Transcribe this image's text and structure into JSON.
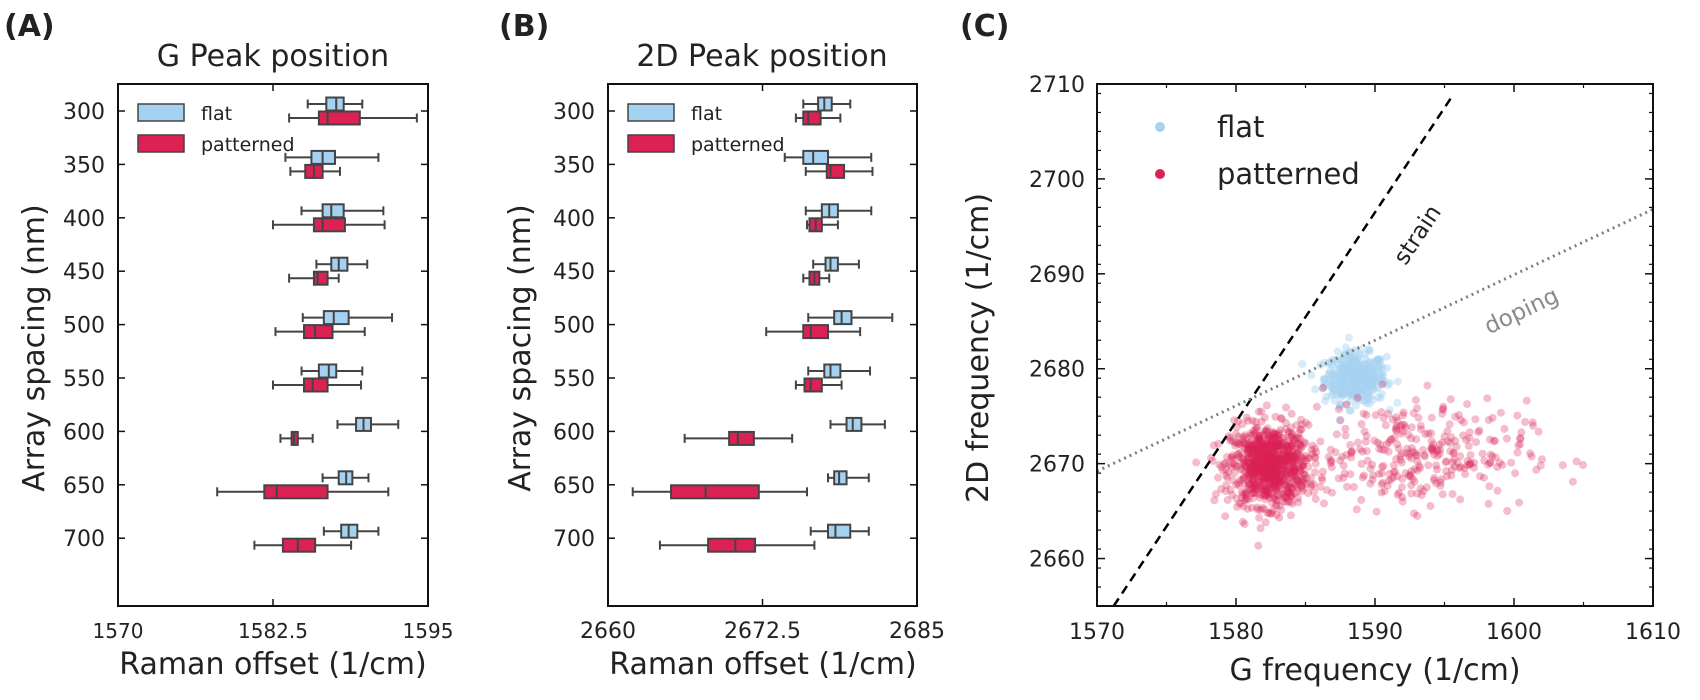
{
  "colors": {
    "flat": "#a6d2f2",
    "patterned": "#dc2255",
    "line": "#222222",
    "box_edge": "#444444",
    "strain": "#000000",
    "doping": "#7f7f7f"
  },
  "chart_data": [
    {
      "type": "box",
      "panel": "(A)",
      "title": "G Peak position",
      "xlabel": "Raman offset (1/cm)",
      "ylabel": "Array spacing (nm)",
      "xlim": [
        1570,
        1595
      ],
      "xticks": [
        "1570",
        "1582.5",
        "1595"
      ],
      "categories": [
        "300",
        "350",
        "400",
        "450",
        "500",
        "550",
        "600",
        "650",
        "700"
      ],
      "legend": [
        "flat",
        "patterned"
      ],
      "legend_position": "top-left",
      "series": [
        {
          "name": "flat",
          "whisker_low": [
            1585.3,
            1583.5,
            1584.8,
            1586.0,
            1584.9,
            1584.8,
            1587.7,
            1586.5,
            1586.6
          ],
          "q1": [
            1586.8,
            1585.6,
            1586.5,
            1587.2,
            1586.6,
            1586.2,
            1589.2,
            1587.8,
            1588.0
          ],
          "median": [
            1587.6,
            1586.5,
            1587.2,
            1587.8,
            1587.4,
            1587.0,
            1589.8,
            1588.4,
            1588.6
          ],
          "q3": [
            1588.2,
            1587.5,
            1588.2,
            1588.5,
            1588.6,
            1587.6,
            1590.4,
            1588.9,
            1589.3
          ],
          "whisker_high": [
            1589.7,
            1591.0,
            1591.4,
            1590.1,
            1592.1,
            1589.7,
            1592.6,
            1590.2,
            1591.0
          ]
        },
        {
          "name": "patterned",
          "whisker_low": [
            1583.8,
            1583.9,
            1582.5,
            1583.8,
            1582.7,
            1582.5,
            1583.1,
            1578.0,
            1581.0
          ],
          "q1": [
            1586.2,
            1585.1,
            1585.8,
            1585.8,
            1585.0,
            1585.0,
            1584.0,
            1581.8,
            1583.3
          ],
          "median": [
            1586.9,
            1585.8,
            1586.5,
            1586.1,
            1585.9,
            1585.7,
            1584.2,
            1582.8,
            1584.5
          ],
          "q3": [
            1589.5,
            1586.5,
            1588.3,
            1586.9,
            1587.3,
            1586.9,
            1584.5,
            1586.9,
            1585.9
          ],
          "whisker_high": [
            1594.1,
            1587.9,
            1591.5,
            1587.8,
            1589.9,
            1589.6,
            1585.7,
            1591.8,
            1588.8
          ]
        }
      ]
    },
    {
      "type": "box",
      "panel": "(B)",
      "title": "2D Peak position",
      "xlabel": "Raman offset (1/cm)",
      "ylabel": "Array spacing (nm)",
      "xlim": [
        2660,
        2685
      ],
      "xticks": [
        "2660",
        "2672.5",
        "2685"
      ],
      "categories": [
        "300",
        "350",
        "400",
        "450",
        "500",
        "550",
        "600",
        "650",
        "700"
      ],
      "legend": [
        "flat",
        "patterned"
      ],
      "legend_position": "top-left",
      "series": [
        {
          "name": "flat",
          "whisker_low": [
            2675.8,
            2674.3,
            2676.0,
            2676.6,
            2676.2,
            2676.2,
            2678.0,
            2677.8,
            2676.4
          ],
          "q1": [
            2677.0,
            2675.8,
            2677.3,
            2677.6,
            2678.3,
            2677.5,
            2679.3,
            2678.3,
            2677.8
          ],
          "median": [
            2677.5,
            2676.6,
            2677.9,
            2678.0,
            2678.9,
            2678.0,
            2679.8,
            2678.7,
            2678.4
          ],
          "q3": [
            2678.1,
            2677.8,
            2678.6,
            2678.6,
            2679.7,
            2678.8,
            2680.5,
            2679.3,
            2679.6
          ],
          "whisker_high": [
            2679.6,
            2681.3,
            2681.3,
            2680.3,
            2683.0,
            2681.2,
            2682.4,
            2681.1,
            2681.1
          ]
        },
        {
          "name": "patterned",
          "whisker_low": [
            2675.2,
            2676.0,
            2676.1,
            2675.8,
            2672.8,
            2675.2,
            2666.2,
            2662.0,
            2664.2
          ],
          "q1": [
            2675.8,
            2677.7,
            2676.3,
            2676.3,
            2675.8,
            2675.9,
            2669.8,
            2665.1,
            2668.1
          ],
          "median": [
            2676.2,
            2678.0,
            2676.8,
            2676.7,
            2676.4,
            2676.4,
            2670.5,
            2667.9,
            2670.3
          ],
          "q3": [
            2677.2,
            2679.1,
            2677.3,
            2677.1,
            2677.8,
            2677.3,
            2671.8,
            2672.2,
            2671.9
          ],
          "whisker_high": [
            2678.8,
            2681.4,
            2678.6,
            2677.9,
            2680.4,
            2678.9,
            2674.9,
            2676.1,
            2676.7
          ]
        }
      ]
    },
    {
      "type": "scatter",
      "panel": "(C)",
      "xlabel": "G frequency (1/cm)",
      "ylabel": "2D frequency (1/cm)",
      "xlim": [
        1570,
        1610
      ],
      "ylim": [
        2655,
        2710
      ],
      "xticks": [
        "1570",
        "1580",
        "1590",
        "1600",
        "1610"
      ],
      "yticks": [
        "2660",
        "2670",
        "2680",
        "2690",
        "2700",
        "2710"
      ],
      "legend": [
        "flat",
        "patterned"
      ],
      "legend_position": "top-left",
      "series": [
        {
          "name": "flat",
          "clusters": [
            {
              "cx": 1588.6,
              "cy": 2679.0,
              "sx": 1.1,
              "sy": 1.3,
              "n": 420
            }
          ]
        },
        {
          "name": "patterned",
          "clusters": [
            {
              "cx": 1582.4,
              "cy": 2669.8,
              "sx": 1.4,
              "sy": 2.1,
              "n": 900
            },
            {
              "cx": 1592.5,
              "cy": 2671.0,
              "sx": 4.2,
              "sy": 2.8,
              "n": 320
            }
          ]
        }
      ],
      "annotations": [
        {
          "text": "strain",
          "line": [
            [
              1571.2,
              2655
            ],
            [
              1595.5,
              2708.6
            ]
          ]
        },
        {
          "text": "doping",
          "line": [
            [
              1570,
              2669.2
            ],
            [
              1610,
              2696.8
            ]
          ]
        }
      ]
    }
  ]
}
